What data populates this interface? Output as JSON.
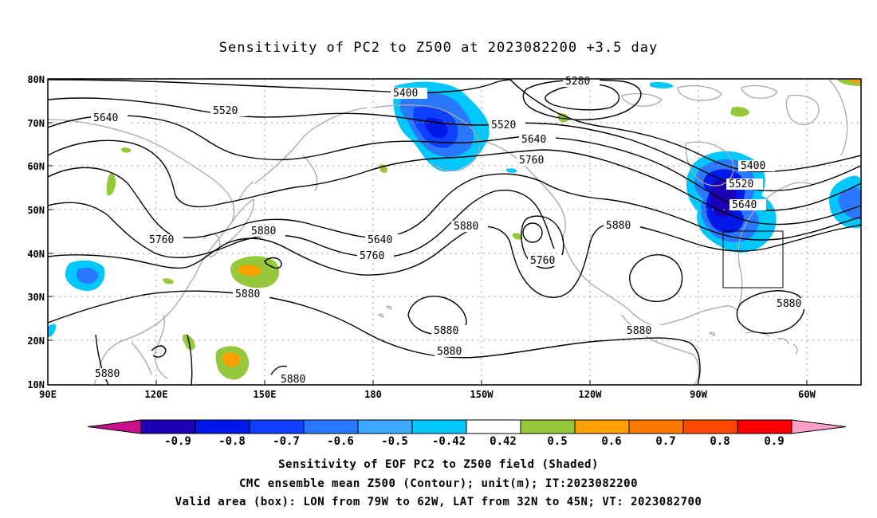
{
  "title": "Sensitivity of PC2 to Z500 at 2023082200 +3.5 day",
  "axes": {
    "lat_labels": [
      "80N",
      "70N",
      "60N",
      "50N",
      "40N",
      "30N",
      "20N",
      "10N"
    ],
    "lon_labels": [
      "90E",
      "120E",
      "150E",
      "180",
      "150W",
      "120W",
      "90W",
      "60W"
    ]
  },
  "contour_labels": [
    {
      "text": "5280",
      "id": "c5280"
    },
    {
      "text": "5400",
      "id": "c5400a"
    },
    {
      "text": "5400",
      "id": "c5400b"
    },
    {
      "text": "5520",
      "id": "c5520a"
    },
    {
      "text": "5520",
      "id": "c5520b"
    },
    {
      "text": "5520",
      "id": "c5520c"
    },
    {
      "text": "5640",
      "id": "c5640a"
    },
    {
      "text": "5640",
      "id": "c5640b"
    },
    {
      "text": "5640",
      "id": "c5640c"
    },
    {
      "text": "5640",
      "id": "c5640d"
    },
    {
      "text": "5760",
      "id": "c5760a"
    },
    {
      "text": "5760",
      "id": "c5760b"
    },
    {
      "text": "5760",
      "id": "c5760c"
    },
    {
      "text": "5760",
      "id": "c5760d"
    },
    {
      "text": "5880",
      "id": "c5880a"
    },
    {
      "text": "5880",
      "id": "c5880b"
    },
    {
      "text": "5880",
      "id": "c5880c"
    },
    {
      "text": "5880",
      "id": "c5880d"
    },
    {
      "text": "5880",
      "id": "c5880e"
    },
    {
      "text": "5880",
      "id": "c5880f"
    },
    {
      "text": "5880",
      "id": "c5880g"
    },
    {
      "text": "5880",
      "id": "c5880h"
    },
    {
      "text": "5880",
      "id": "c5880i"
    },
    {
      "text": "5880",
      "id": "c5880j"
    }
  ],
  "colorbar": {
    "colors": [
      "#c8108c",
      "#1c00b4",
      "#0018e8",
      "#1040ff",
      "#2a78ff",
      "#3ca8ff",
      "#00c8ff",
      "#ffffff",
      "#96c83c",
      "#ffa000",
      "#ff7800",
      "#ff4800",
      "#ff0000",
      "#ffa0c8"
    ],
    "labels": [
      "-0.9",
      "-0.8",
      "-0.7",
      "-0.6",
      "-0.5",
      "-0.42",
      "0.42",
      "0.5",
      "0.6",
      "0.7",
      "0.8",
      "0.9"
    ]
  },
  "captions": [
    "Sensitivity of EOF PC2 to Z500 field (Shaded)",
    "CMC ensemble mean Z500 (Contour); unit(m); IT:2023082200",
    "Valid area (box): LON from 79W to 62W, LAT from 32N to 45N; VT: 2023082700"
  ]
}
